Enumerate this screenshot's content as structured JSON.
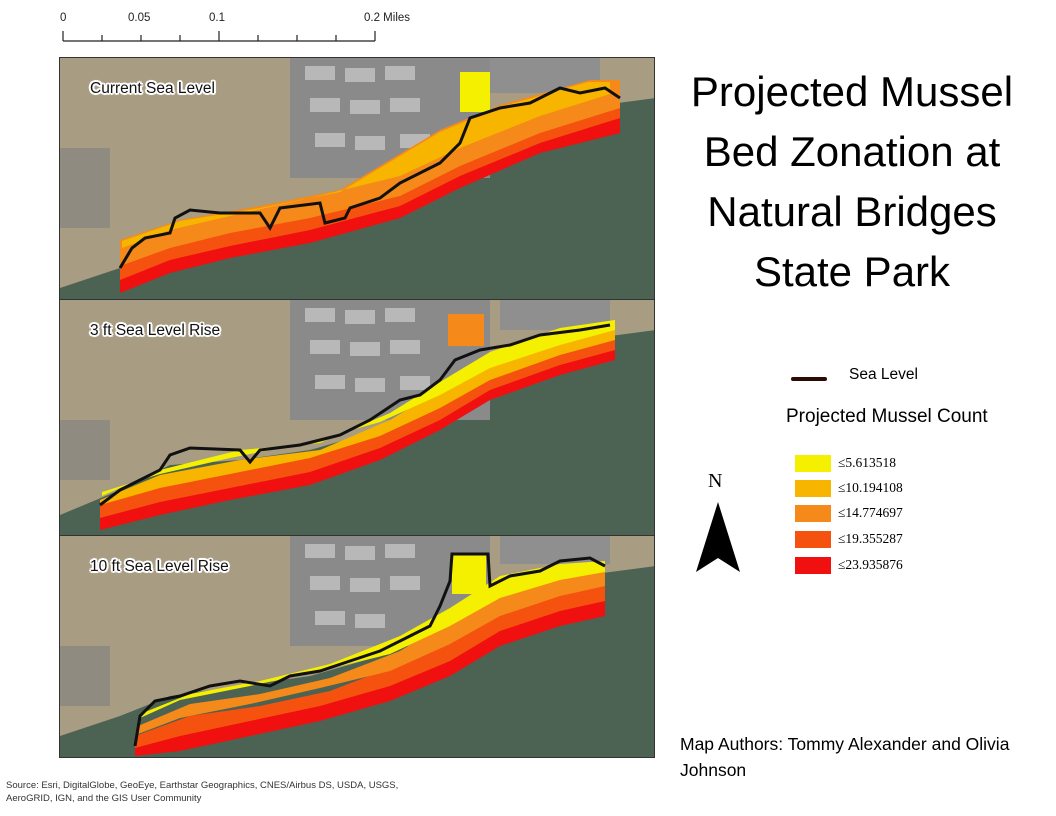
{
  "scale_bar": {
    "labels": [
      "0",
      "0.05",
      "0.1",
      "0.2 Miles"
    ],
    "max_miles": 0.2
  },
  "panels": [
    {
      "label": "Current Sea Level"
    },
    {
      "label": "3 ft Sea Level Rise"
    },
    {
      "label": "10 ft Sea Level Rise"
    }
  ],
  "title": {
    "lines": [
      "Projected Mussel",
      "Bed Zonation at",
      "Natural Bridges",
      "State Park"
    ]
  },
  "legend": {
    "sea_level_label": "Sea Level",
    "sea_level_color": "#2a0b05",
    "title": "Projected Mussel Count",
    "classes": [
      {
        "label": "≤5.613518",
        "color": "#f5f000"
      },
      {
        "label": "≤10.194108",
        "color": "#f7b500"
      },
      {
        "label": "≤14.774697",
        "color": "#f58a1a"
      },
      {
        "label": "≤19.355287",
        "color": "#f5520f"
      },
      {
        "label": "≤23.935876",
        "color": "#f01010"
      }
    ]
  },
  "north_arrow": {
    "label": "N"
  },
  "authors": "Map Authors: Tommy Alexander and Olivia Johnson",
  "source": "Source: Esri, DigitalGlobe, GeoEye, Earthstar Geographics, CNES/Airbus DS, USDA, USGS, AeroGRID, IGN, and the GIS User Community",
  "colors": {
    "ocean": "#4c6354",
    "land": "#a89d83",
    "urban": "#8a8a8a"
  }
}
